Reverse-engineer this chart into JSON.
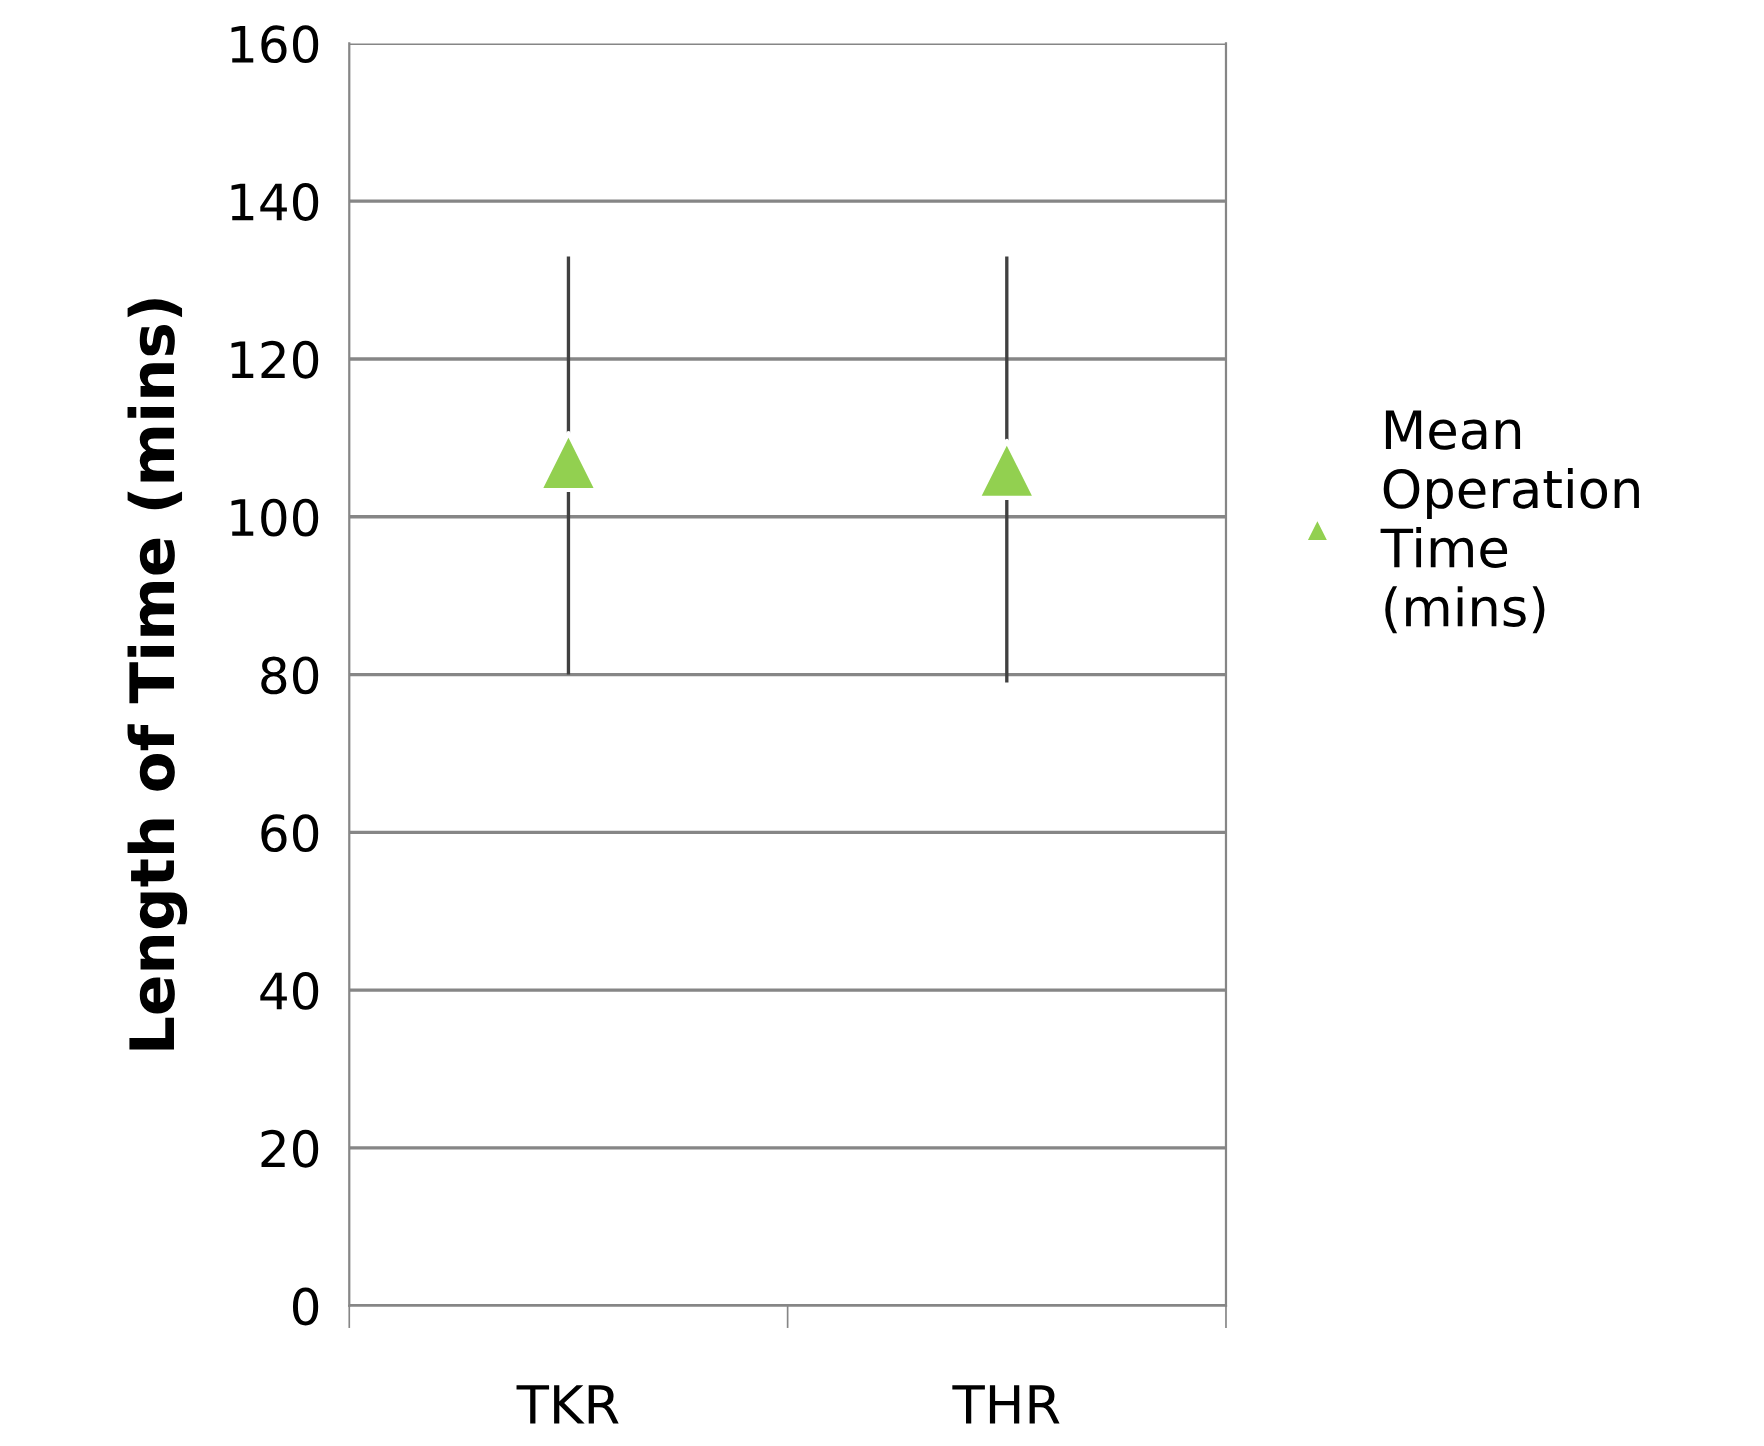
{
  "chart_data": {
    "type": "scatter",
    "ylabel": "Length of Time (mins)",
    "categories": [
      "TKR",
      "THR"
    ],
    "series": [
      {
        "name": "Mean\nOperation\nTime\n(mins)",
        "color": "#92d050",
        "values": [
          107,
          106
        ],
        "errors": [
          [
            80,
            133
          ],
          [
            79,
            133
          ]
        ]
      }
    ],
    "ylim": [
      0,
      160
    ],
    "yticks": [
      0,
      20,
      40,
      60,
      80,
      100,
      120,
      140,
      160
    ],
    "grid": "y",
    "legend": "right",
    "marker": "triangle"
  }
}
